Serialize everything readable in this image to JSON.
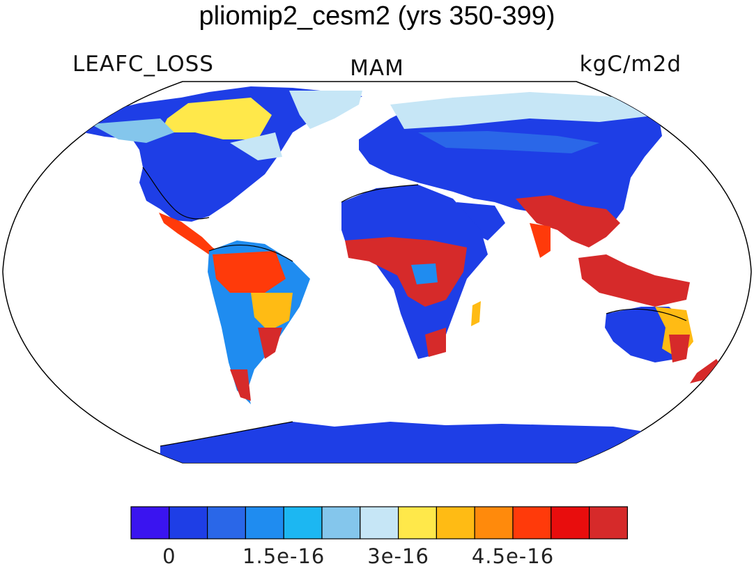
{
  "title": "pliomip2_cesm2 (yrs 350-399)",
  "variable": "LEAFC_LOSS",
  "season": "MAM",
  "units": "kgC/m2d",
  "colorbar": {
    "colors": [
      "#3a14f0",
      "#1e3ee6",
      "#2a67e8",
      "#1f8cf0",
      "#1cb7f2",
      "#84c6ec",
      "#c6e6f6",
      "#ffe84a",
      "#ffbb14",
      "#ff8a0c",
      "#ff3a0a",
      "#e80d0d",
      "#d62a2a"
    ],
    "tick_labels": [
      "0",
      "1.5e-16",
      "3e-16",
      "4.5e-16"
    ]
  },
  "legend_levels": {
    "low": "#1e3ee6",
    "mid_low": "#1f8cf0",
    "mid": "#c6e6f6",
    "high": "#ffbb14",
    "very_high": "#d62a2a"
  }
}
